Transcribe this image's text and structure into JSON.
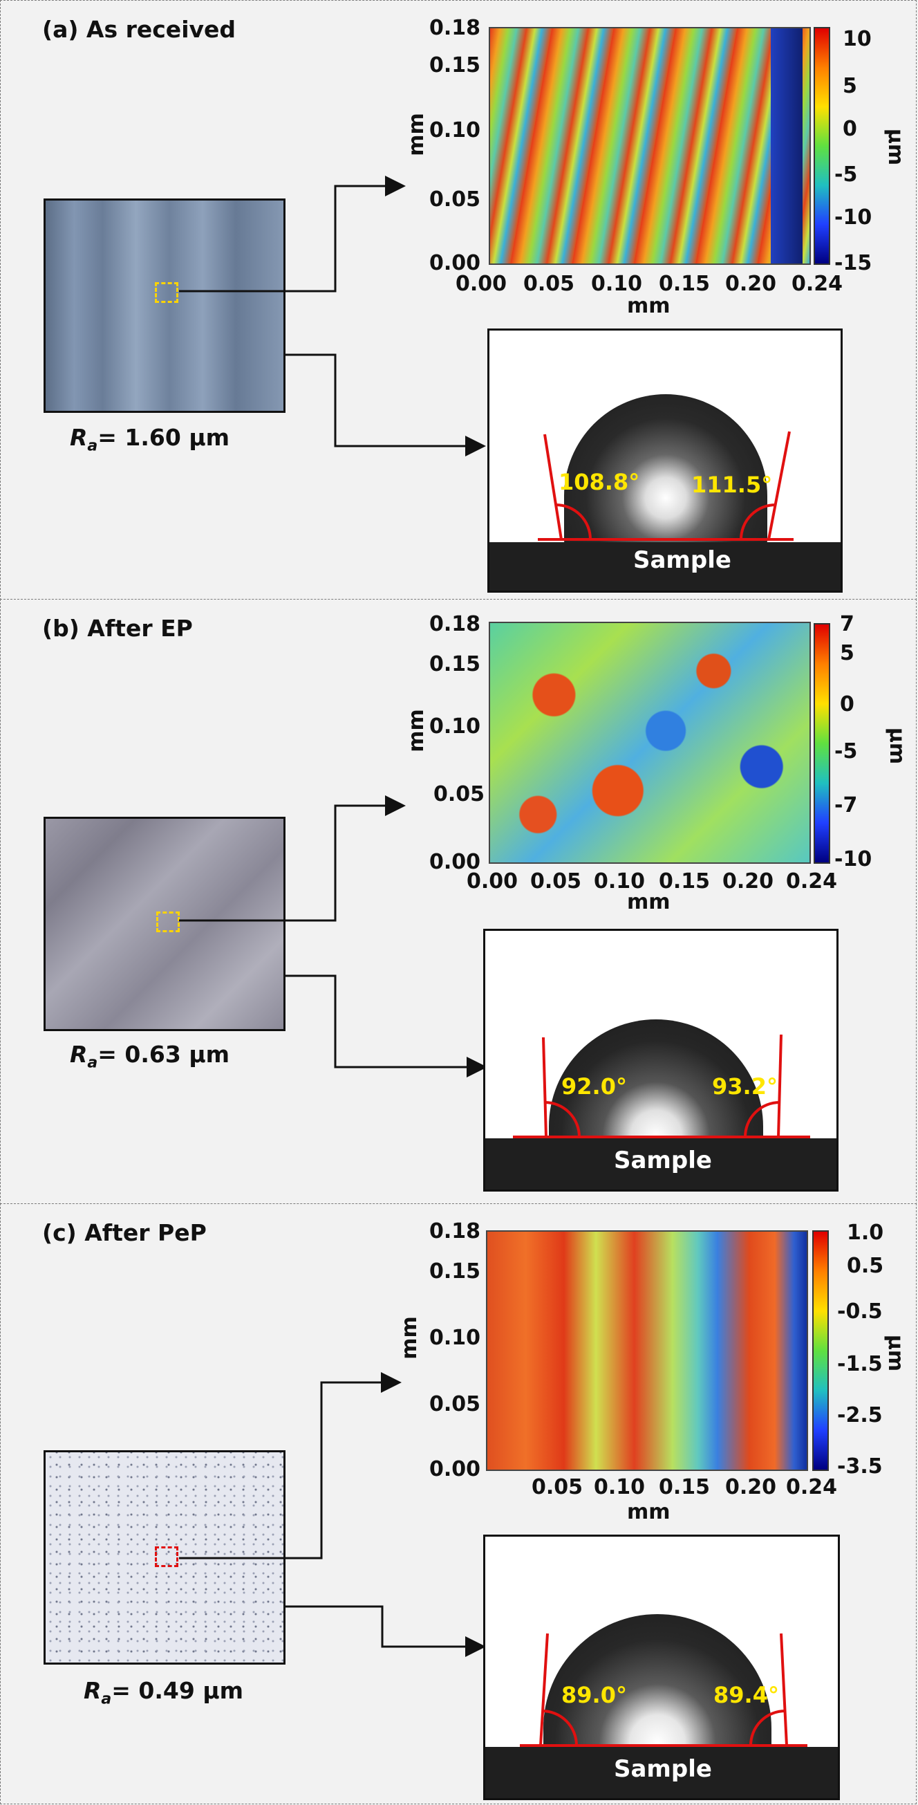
{
  "panels": [
    {
      "title": "(a) As received",
      "ra_label": "= 1.60 μm",
      "photo_style": "as-received",
      "roi_color": "#ffd400",
      "map": {
        "xticks": [
          "0.00",
          "0.05",
          "0.10",
          "0.15",
          "0.20",
          "0.24"
        ],
        "yticks": [
          "0.18",
          "0.15",
          "0.10",
          "0.05",
          "0.00"
        ],
        "xlabel": "mm",
        "ylabel": "mm",
        "colorbar_ticks": [
          "10",
          "5",
          "0",
          "-5",
          "-10",
          "-15"
        ],
        "unit": "μm",
        "pattern": "stripes-fine"
      },
      "droplet": {
        "left_angle": "108.8°",
        "right_angle": "111.5°",
        "sample_label": "Sample"
      }
    },
    {
      "title": "(b) After EP",
      "ra_label": "= 0.63 μm",
      "photo_style": "after-ep",
      "roi_color": "#ffd400",
      "map": {
        "xticks": [
          "0.00",
          "0.05",
          "0.10",
          "0.15",
          "0.20",
          "0.24"
        ],
        "yticks": [
          "0.18",
          "0.15",
          "0.10",
          "0.05",
          "0.00"
        ],
        "xlabel": "mm",
        "ylabel": "mm",
        "colorbar_ticks": [
          "7",
          "5",
          "0",
          "-5",
          "-7",
          "-10"
        ],
        "unit": "μm",
        "pattern": "grains"
      },
      "droplet": {
        "left_angle": "92.0°",
        "right_angle": "93.2°",
        "sample_label": "Sample"
      }
    },
    {
      "title": "(c) After PeP",
      "ra_label": "= 0.49 μm",
      "photo_style": "after-pep",
      "roi_color": "#e01010",
      "map": {
        "xticks": [
          "0.05",
          "0.10",
          "0.15",
          "0.20",
          "0.24"
        ],
        "yticks": [
          "0.18",
          "0.15",
          "0.10",
          "0.05",
          "0.00"
        ],
        "xlabel": "mm",
        "ylabel": "mm",
        "colorbar_ticks": [
          "1.0",
          "0.5",
          "-0.5",
          "-1.5",
          "-2.5",
          "-3.5"
        ],
        "unit": "μm",
        "pattern": "stripes-broad"
      },
      "droplet": {
        "left_angle": "89.0°",
        "right_angle": "89.4°",
        "sample_label": "Sample"
      }
    }
  ],
  "ra_symbol": "R",
  "ra_subscript": "a"
}
